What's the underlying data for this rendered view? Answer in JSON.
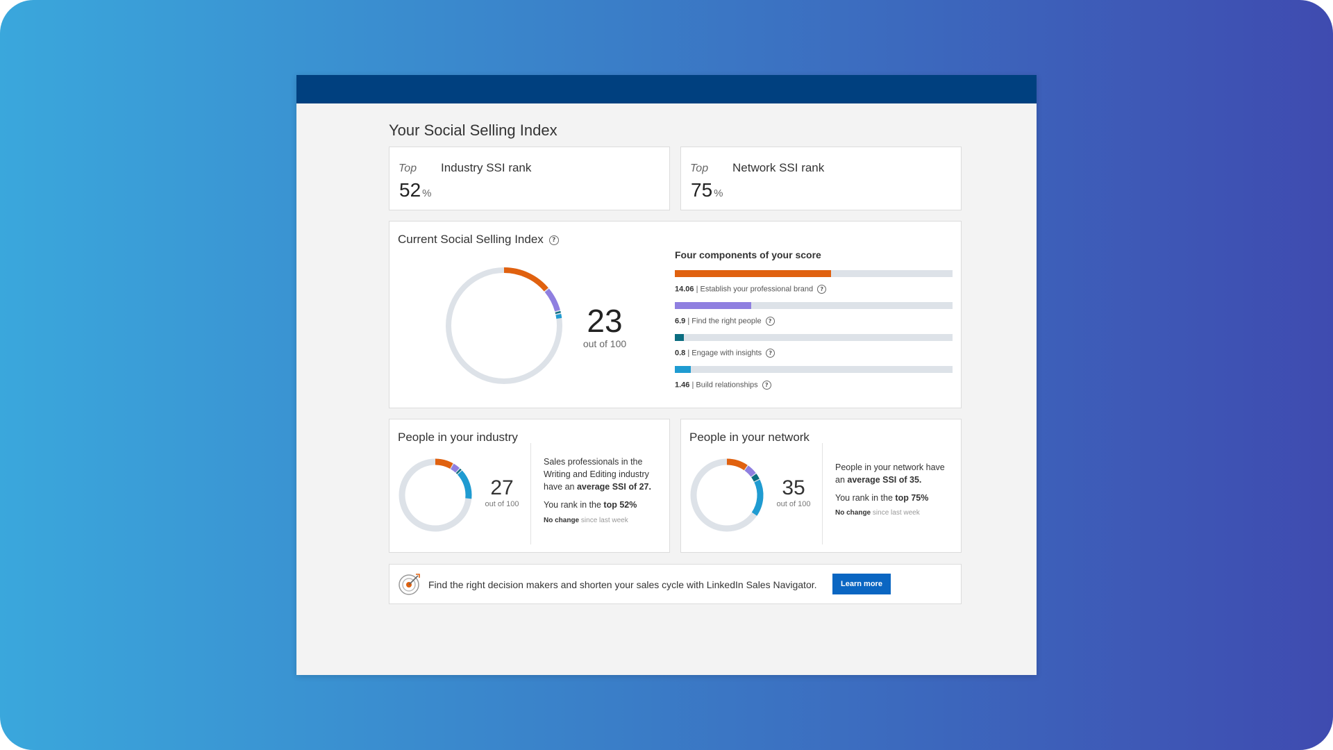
{
  "page": {
    "title": "Your Social Selling Index"
  },
  "ranks": [
    {
      "prefix": "Top",
      "label": "Industry SSI rank",
      "value": "52",
      "unit": "%"
    },
    {
      "prefix": "Top",
      "label": "Network SSI rank",
      "value": "75",
      "unit": "%"
    }
  ],
  "ssi": {
    "title": "Current Social Selling Index",
    "score": "23",
    "score_value": 23,
    "out_of": "out of 100",
    "components_heading": "Four components of your score",
    "components": [
      {
        "value": "14.06",
        "label": "Establish your professional brand",
        "score": 14.06,
        "max": 25,
        "color": "#e0610f"
      },
      {
        "value": "6.9",
        "label": "Find the right people",
        "score": 6.9,
        "max": 25,
        "color": "#8f7fe0"
      },
      {
        "value": "0.8",
        "label": "Engage with insights",
        "score": 0.8,
        "max": 25,
        "color": "#0b6d80"
      },
      {
        "value": "1.46",
        "label": "Build relationships",
        "score": 1.46,
        "max": 25,
        "color": "#1f9bd1"
      }
    ]
  },
  "industry": {
    "title": "People in your industry",
    "score": "27",
    "score_value": 27,
    "out_of": "out of 100",
    "text_intro": "Sales professionals in the Writing and Editing industry have an",
    "text_avg": "average SSI of 27.",
    "rank_prefix": "You rank in the",
    "rank_bold": "top 52%",
    "change_bold": "No change",
    "change_rest": "since last week",
    "segments": [
      8.5,
      3.5,
      1.2,
      13.8
    ]
  },
  "network": {
    "title": "People in your network",
    "score": "35",
    "score_value": 35,
    "out_of": "out of 100",
    "text_intro": "People in your network have an",
    "text_avg": "average SSI of 35.",
    "rank_prefix": "You rank in the",
    "rank_bold": "top 75%",
    "change_bold": "No change",
    "change_rest": "since last week",
    "segments": [
      10,
      5,
      3,
      17
    ]
  },
  "promo": {
    "text": "Find the right decision makers and shorten your sales cycle with LinkedIn Sales Navigator.",
    "button": "Learn more"
  },
  "colors": {
    "brand": "#e0610f",
    "people": "#8f7fe0",
    "insights": "#0b6d80",
    "relationships": "#1f9bd1",
    "track": "#dde2e8",
    "topbar": "#00407f",
    "button": "#0a66c2"
  }
}
